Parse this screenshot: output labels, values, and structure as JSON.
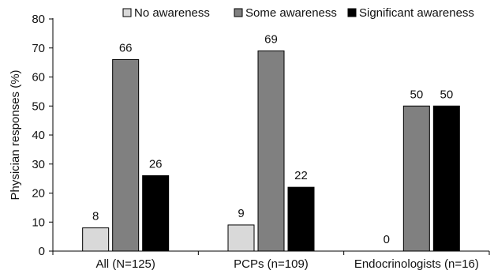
{
  "chart_data": {
    "type": "bar",
    "title": "",
    "xlabel": "",
    "ylabel": "Physician responses (%)",
    "ylim": [
      0,
      80
    ],
    "yticks": [
      0,
      10,
      20,
      30,
      40,
      50,
      60,
      70,
      80
    ],
    "categories": [
      "All (N=125)",
      "PCPs (n=109)",
      "Endocrinologists (n=16)"
    ],
    "series": [
      {
        "name": "No awareness",
        "values": [
          8,
          9,
          0
        ],
        "labels": [
          "8",
          "9",
          "0"
        ],
        "color": "#d9d9d9"
      },
      {
        "name": "Some awareness",
        "values": [
          66,
          69,
          50
        ],
        "labels": [
          "66",
          "69",
          "50"
        ],
        "color": "#808080"
      },
      {
        "name": "Significant awareness",
        "values": [
          26,
          22,
          50
        ],
        "labels": [
          "26",
          "22",
          "50"
        ],
        "color": "#000000"
      }
    ],
    "legend_position": "top",
    "grid": false
  }
}
